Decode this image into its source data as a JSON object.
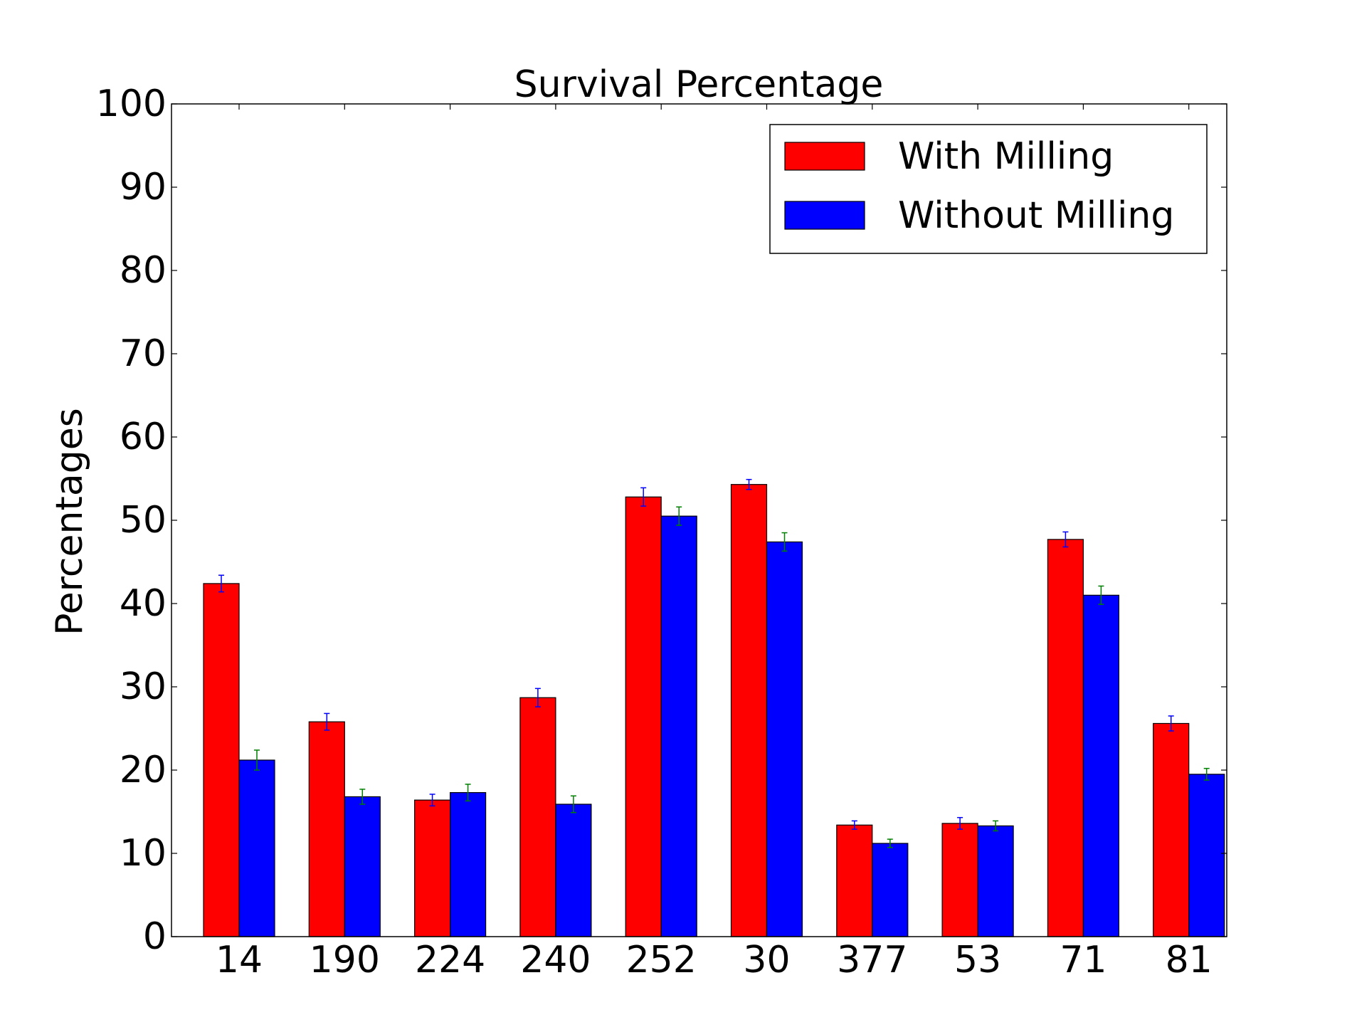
{
  "chart_data": {
    "type": "bar",
    "title": "Survival Percentage",
    "xlabel": "",
    "ylabel": "Percentages",
    "ylim": [
      0,
      100
    ],
    "yticks": [
      0,
      10,
      20,
      30,
      40,
      50,
      60,
      70,
      80,
      90,
      100
    ],
    "categories": [
      "14",
      "190",
      "224",
      "240",
      "252",
      "30",
      "377",
      "53",
      "71",
      "81"
    ],
    "legend_position": "top-right",
    "grid": false,
    "series": [
      {
        "name": "With Milling",
        "color": "#ff0000",
        "error_color": "#0000ff",
        "values": [
          42.4,
          25.8,
          16.4,
          28.7,
          52.8,
          54.3,
          13.4,
          13.6,
          47.7,
          25.6
        ],
        "errors": [
          1.0,
          1.0,
          0.7,
          1.1,
          1.1,
          0.6,
          0.5,
          0.7,
          0.9,
          0.9
        ]
      },
      {
        "name": "Without Milling",
        "color": "#0000ff",
        "error_color": "#008000",
        "values": [
          21.2,
          16.8,
          17.3,
          15.9,
          50.5,
          47.4,
          11.2,
          13.3,
          41.0,
          19.5
        ],
        "errors": [
          1.2,
          0.9,
          1.0,
          1.0,
          1.1,
          1.1,
          0.5,
          0.6,
          1.1,
          0.7
        ]
      }
    ]
  }
}
